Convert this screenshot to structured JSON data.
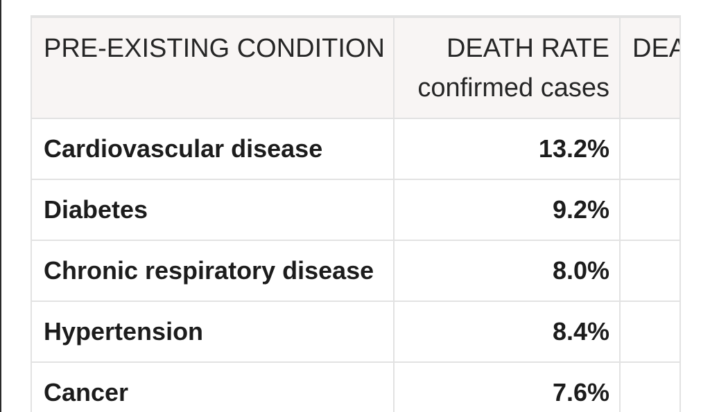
{
  "table": {
    "headers": {
      "condition": "PRE-EXISTING CONDITION",
      "death_rate_line1": "DEATH RATE",
      "death_rate_line2": "confirmed cases",
      "third_col": "DEA"
    },
    "rows": [
      {
        "condition": "Cardiovascular disease",
        "death_rate": "13.2%"
      },
      {
        "condition": "Diabetes",
        "death_rate": "9.2%"
      },
      {
        "condition": "Chronic respiratory disease",
        "death_rate": "8.0%"
      },
      {
        "condition": "Hypertension",
        "death_rate": "8.4%"
      },
      {
        "condition": "Cancer",
        "death_rate": "7.6%"
      }
    ]
  },
  "colors": {
    "header_bg": "#f8f5f4",
    "border": "#e2e2e2",
    "text": "#1c1c1c"
  }
}
